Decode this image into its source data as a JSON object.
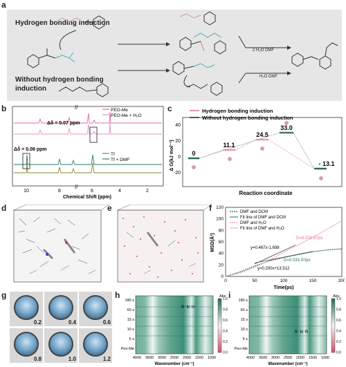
{
  "panels": {
    "a": {
      "label": "a",
      "top_text": "Hydrogen bonding induction",
      "bottom_text_1": "Without hydrogen bonding",
      "bottom_text_2": "induction",
      "arrow_top_label": "2 H₂O  DMF",
      "arrow_bottom_label": "H₂O  DMF"
    },
    "b": {
      "label": "b",
      "legend_top": [
        "PEO-Me",
        "PEO-Me + H₂O"
      ],
      "legend_bottom": [
        "Tf",
        "Tf + DMF"
      ],
      "delta_top": "Δδ = 0.07 ppm",
      "delta_bottom": "Δδ = 0.08 ppm",
      "xlabel": "Chemical Shift (ppm)",
      "xticks": [
        "10",
        "8",
        "6",
        "4",
        "2"
      ]
    },
    "c": {
      "label": "c",
      "legend": [
        "Hydrogen bonding induction",
        "Without hydrogen bonding induction"
      ],
      "ylabel": "Δ G(kJ mol⁻¹)",
      "xlabel": "Reaction coordinate",
      "yticks": [
        "40",
        "20",
        "0",
        "-20"
      ],
      "values": [
        "0",
        "11.1",
        "24.5",
        "33.0",
        "- 13.1"
      ]
    },
    "d": {
      "label": "d"
    },
    "e": {
      "label": "e"
    },
    "f": {
      "label": "f",
      "legend": [
        "DMF and DCM",
        "Fit line of DMF and DCM",
        "DMF and H₂O",
        "Fit line of DMF and H₂O"
      ],
      "ylabel": "MSD(Å²)",
      "xlabel": "Time(ps)",
      "xticks": [
        "0",
        "50",
        "100",
        "150",
        "200"
      ],
      "yticks": [
        "0",
        "20",
        "40",
        "60",
        "80",
        "100",
        "120"
      ],
      "fit_h2o": "y=0.467x-1.698",
      "fit_dcm": "y=0.200x+13.512",
      "d_h2o": "D=0.078 Å²/ps",
      "d_dcm": "D=0.033 Å²/ps"
    },
    "g": {
      "label": "g",
      "vials": [
        "0.2",
        "0.4",
        "0.6",
        "0.8",
        "1.0",
        "1.2"
      ]
    },
    "h": {
      "label": "h",
      "yticks": [
        "180 s",
        "60 s",
        "15 s",
        "10 s",
        "5 s",
        "Peo-Me"
      ],
      "xticks": [
        "4000",
        "3500",
        "3000",
        "2500",
        "2000",
        "1500",
        "1000"
      ],
      "xlabel": "Wavenumber (cm⁻¹)",
      "cbar_title": "Abs",
      "cbar_ticks": [
        "1.0",
        "0.8",
        "0.6",
        "0.4",
        "0.2",
        "0.0"
      ],
      "annot": "R⁻N⁻H"
    },
    "i": {
      "label": "i",
      "yticks": [
        "180 s",
        "60 s",
        "15 s",
        "10 s",
        "5 s",
        "Peo-Me"
      ],
      "xticks": [
        "4000",
        "3500",
        "3000",
        "2500",
        "2000",
        "1500",
        "1000"
      ],
      "xlabel": "Wavenumber (cm⁻¹)",
      "cbar_title": "Abs",
      "cbar_ticks": [
        "1.0",
        "0.8",
        "0.6",
        "0.4",
        "0.2",
        "0.0"
      ],
      "annot": "R⁻N⁻R"
    }
  },
  "chart_data": [
    {
      "type": "line",
      "panel": "c",
      "ylabel": "Δ G(kJ mol⁻¹)",
      "xlabel": "Reaction coordinate",
      "ylim": [
        -25,
        50
      ],
      "series": [
        {
          "name": "Hydrogen bonding induction",
          "values": [
            0,
            11.1,
            24.5,
            -13.1
          ]
        },
        {
          "name": "Without hydrogen bonding induction",
          "values": [
            0,
            33.0,
            -13.1
          ]
        }
      ]
    },
    {
      "type": "line",
      "panel": "f",
      "xlabel": "Time(ps)",
      "ylabel": "MSD(Å²)",
      "xlim": [
        0,
        200
      ],
      "ylim": [
        0,
        120
      ],
      "series": [
        {
          "name": "DMF and DCM",
          "x": [
            0,
            25,
            50,
            75,
            100,
            125,
            150,
            175,
            200
          ],
          "values": [
            0,
            8,
            18,
            27,
            33,
            38,
            43,
            46,
            48
          ]
        },
        {
          "name": "DMF and H₂O",
          "x": [
            0,
            25,
            50,
            75,
            100,
            125,
            150,
            175,
            200
          ],
          "values": [
            0,
            6,
            16,
            28,
            42,
            55,
            68,
            82,
            97
          ]
        }
      ]
    }
  ]
}
